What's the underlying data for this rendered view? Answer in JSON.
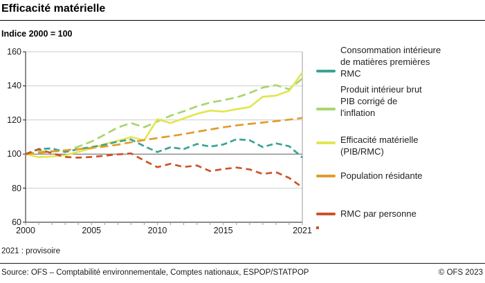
{
  "header": {
    "title": "Efficacité matérielle",
    "subtitle": "Indice 2000 = 100"
  },
  "chart_data": {
    "type": "line",
    "title": "Efficacité matérielle",
    "subtitle": "Indice 2000 = 100",
    "xlabel": "",
    "ylabel": "Indice 2000 = 100",
    "ylim": [
      60,
      160
    ],
    "y_ticks": [
      60,
      80,
      100,
      120,
      140,
      160
    ],
    "x_tick_labels": [
      {
        "label": "2000",
        "year": 2000
      },
      {
        "label": "2005",
        "year": 2005
      },
      {
        "label": "2010",
        "year": 2010
      },
      {
        "label": "2015",
        "year": 2015
      },
      {
        "label": "2021",
        "year": 2021
      }
    ],
    "grid": "horizontal",
    "legend_position": "right",
    "x": [
      2000,
      2001,
      2002,
      2003,
      2004,
      2005,
      2006,
      2007,
      2008,
      2009,
      2010,
      2011,
      2012,
      2013,
      2014,
      2015,
      2016,
      2017,
      2018,
      2019,
      2020,
      2021
    ],
    "series": [
      {
        "key": "rmc",
        "name": "Consommation intérieure de matières premières RMC",
        "color": "#3aa396",
        "dash": "9 5",
        "z": 3,
        "values": [
          100,
          103,
          103.3,
          101.2,
          102.9,
          104.1,
          105.5,
          107.3,
          108.6,
          104.6,
          101.2,
          104,
          102.9,
          105.9,
          104.4,
          105.6,
          108.7,
          108.1,
          104.1,
          106.3,
          104.6,
          98
        ]
      },
      {
        "key": "pib",
        "name": "Produit intérieur brut PIB corrigé de l'inflation",
        "color": "#a7d66b",
        "dash": "12 6",
        "z": 1,
        "values": [
          100,
          101.5,
          101.7,
          101.6,
          104.4,
          107.3,
          111.4,
          115.6,
          118.2,
          115.7,
          119.1,
          122.5,
          125.1,
          128,
          130.2,
          131.6,
          133.2,
          135.8,
          139,
          140.4,
          138,
          144.3
        ]
      },
      {
        "key": "efficacite",
        "name": "Efficacité matérielle (PIB/RMC)",
        "color": "#e3e552",
        "dash": "",
        "z": 2,
        "values": [
          100,
          98.2,
          98.6,
          99.3,
          101.3,
          103.3,
          105.8,
          107.8,
          110,
          108.1,
          120.4,
          118.2,
          120.9,
          123.6,
          125.5,
          124.9,
          126.3,
          127.6,
          133.6,
          134.3,
          137.1,
          147.8
        ]
      },
      {
        "key": "population",
        "name": "Population résidante",
        "color": "#e09c2c",
        "dash": "12 6",
        "z": 4,
        "values": [
          100,
          100.7,
          101.5,
          102.2,
          102.9,
          103.6,
          104.4,
          105.5,
          106.9,
          108.2,
          109.4,
          110.5,
          111.7,
          113.1,
          114.4,
          115.7,
          116.8,
          117.7,
          118.5,
          119.3,
          120.2,
          121.2
        ]
      },
      {
        "key": "rmc-par-personne",
        "name": "RMC par personne",
        "color": "#cd5327",
        "dash": "9 6",
        "z": 5,
        "values": [
          100,
          102.8,
          100.5,
          98.3,
          97.9,
          98.3,
          99,
          99.8,
          100.4,
          96.2,
          92.3,
          94.3,
          92.4,
          93.3,
          90,
          91.2,
          92.1,
          91,
          88.3,
          89.4,
          86,
          80.5
        ]
      }
    ]
  },
  "legend": {
    "entries": [
      {
        "key": "rmc",
        "lines": [
          "Consommation intérieure",
          "de matières premières",
          "RMC"
        ]
      },
      {
        "key": "pib",
        "lines": [
          "Produit intérieur brut",
          "PIB corrigé de",
          "l'inflation"
        ]
      },
      {
        "key": "efficacite",
        "lines": [
          "Efficacité matérielle",
          "(PIB/RMC)"
        ]
      },
      {
        "key": "population",
        "lines": [
          "Population résidante"
        ]
      },
      {
        "key": "rmc-par-personne",
        "lines": [
          "RMC par personne"
        ]
      }
    ]
  },
  "footnote": {
    "text": "2021 : provisoire",
    "marker_color": "#cd5327"
  },
  "footer": {
    "source": "Source: OFS – Comptabilité environnementale, Comptes nationaux, ESPOP/STATPOP",
    "copyright": "© OFS 2023"
  },
  "colors": {
    "grid": "#cbcbcb",
    "grid_100": "#5a5a5a",
    "axis": "#1a1a1a",
    "plot_border_right": "#9b9b9b",
    "tick": "#9b9b9b"
  }
}
